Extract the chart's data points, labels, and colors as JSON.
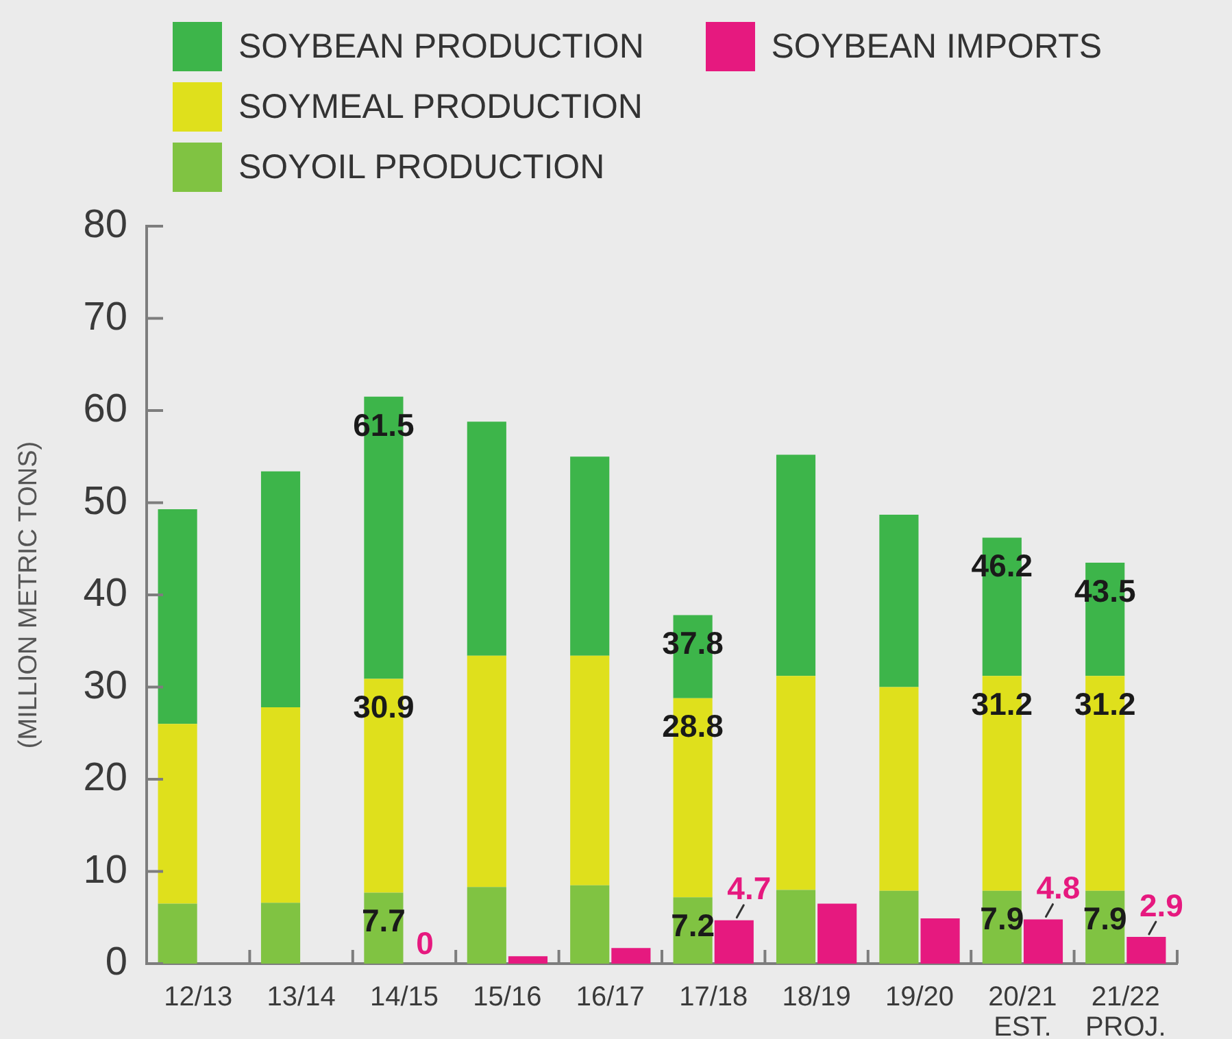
{
  "chart_data": [
    {
      "type": "bar",
      "stacked": true,
      "categories": [
        "12/13",
        "13/14",
        "14/15",
        "15/16",
        "16/17",
        "17/18",
        "18/19",
        "19/20",
        "20/21\nEST.",
        "21/22\nPROJ."
      ],
      "series": [
        {
          "name": "SOYOIL PRODUCTION",
          "color": "#80c342",
          "values": [
            6.5,
            6.6,
            7.7,
            8.3,
            8.5,
            7.2,
            8.0,
            7.9,
            7.9,
            7.9
          ]
        },
        {
          "name": "SOYMEAL PRODUCTION",
          "color": "#dfe01c",
          "values": [
            19.5,
            21.2,
            23.2,
            25.1,
            24.9,
            21.6,
            23.2,
            22.1,
            23.3,
            23.3
          ]
        },
        {
          "name": "SOYBEAN PRODUCTION",
          "color": "#3db54a",
          "values": [
            23.3,
            25.6,
            30.6,
            25.4,
            21.6,
            9.0,
            24.0,
            18.7,
            15.0,
            12.3
          ]
        }
      ],
      "ylim": [
        0,
        80
      ],
      "tick_labels": "x",
      "legend": "top left",
      "annotations": [
        {
          "text": "61.5",
          "x": "14/15",
          "y": 61.5
        },
        {
          "text": "30.9",
          "x": "14/15",
          "y": 30.9
        },
        {
          "text": "7.7",
          "x": "14/15",
          "y": 7.7
        },
        {
          "text": "37.8",
          "x": "17/18",
          "y": 37.8
        },
        {
          "text": "28.8",
          "x": "17/18",
          "y": 28.8
        },
        {
          "text": "7.2",
          "x": "17/18",
          "y": 7.2
        },
        {
          "text": "46.2",
          "x": "20/21\nEST.",
          "y": 46.2
        },
        {
          "text": "31.2",
          "x": "20/21\nEST.",
          "y": 31.2
        },
        {
          "text": "7.9",
          "x": "20/21\nEST.",
          "y": 7.9
        },
        {
          "text": "43.5",
          "x": "21/22\nPROJ.",
          "y": 43.5
        },
        {
          "text": "31.2",
          "x": "21/22\nPROJ.",
          "y": 31.2
        },
        {
          "text": "7.9",
          "x": "21/22\nPROJ.",
          "y": 7.9
        }
      ]
    },
    {
      "type": "bar",
      "categories": [
        null,
        null,
        null,
        null,
        null,
        null,
        null,
        null,
        null,
        null
      ],
      "series": [
        {
          "name": "SOYBEAN IMPORTS",
          "color": "#e6197f",
          "values": [
            0,
            0,
            0,
            0.8,
            1.7,
            4.7,
            6.5,
            4.9,
            4.8,
            2.9
          ],
          "value_labels": [
            null,
            null,
            "0",
            null,
            null,
            "4.7",
            null,
            null,
            "4.8",
            "2.9"
          ]
        }
      ],
      "ylabel": "(MILLION METRIC TONS)",
      "ylim": [
        0,
        80
      ],
      "yticks": [
        0,
        10,
        20,
        30,
        40,
        50,
        60,
        70,
        80
      ],
      "legend": "top right"
    }
  ]
}
